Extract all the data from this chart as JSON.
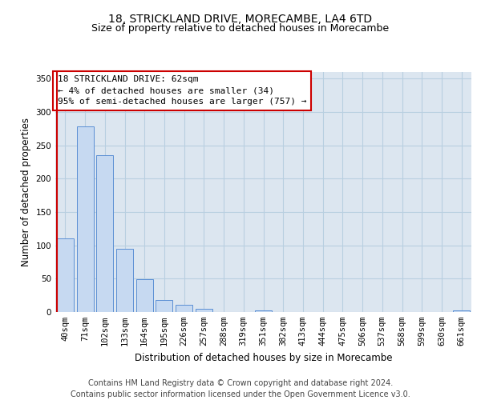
{
  "title": "18, STRICKLAND DRIVE, MORECAMBE, LA4 6TD",
  "subtitle": "Size of property relative to detached houses in Morecambe",
  "xlabel": "Distribution of detached houses by size in Morecambe",
  "ylabel": "Number of detached properties",
  "bin_labels": [
    "40sqm",
    "71sqm",
    "102sqm",
    "133sqm",
    "164sqm",
    "195sqm",
    "226sqm",
    "257sqm",
    "288sqm",
    "319sqm",
    "351sqm",
    "382sqm",
    "413sqm",
    "444sqm",
    "475sqm",
    "506sqm",
    "537sqm",
    "568sqm",
    "599sqm",
    "630sqm",
    "661sqm"
  ],
  "bar_heights": [
    111,
    278,
    235,
    95,
    49,
    18,
    11,
    5,
    0,
    0,
    2,
    0,
    0,
    0,
    0,
    0,
    0,
    0,
    0,
    0,
    2
  ],
  "bar_color": "#c6d9f1",
  "bar_edge_color": "#5b8fd4",
  "marker_line_color": "#cc0000",
  "annotation_text": "18 STRICKLAND DRIVE: 62sqm\n← 4% of detached houses are smaller (34)\n95% of semi-detached houses are larger (757) →",
  "annotation_box_color": "#ffffff",
  "annotation_box_edge_color": "#cc0000",
  "ylim": [
    0,
    360
  ],
  "yticks": [
    0,
    50,
    100,
    150,
    200,
    250,
    300,
    350
  ],
  "footer_line1": "Contains HM Land Registry data © Crown copyright and database right 2024.",
  "footer_line2": "Contains public sector information licensed under the Open Government Licence v3.0.",
  "background_color": "#ffffff",
  "plot_bg_color": "#dce6f0",
  "grid_color": "#b8cfe0",
  "title_fontsize": 10,
  "subtitle_fontsize": 9,
  "axis_label_fontsize": 8.5,
  "tick_fontsize": 7.5,
  "annotation_fontsize": 8,
  "footer_fontsize": 7
}
